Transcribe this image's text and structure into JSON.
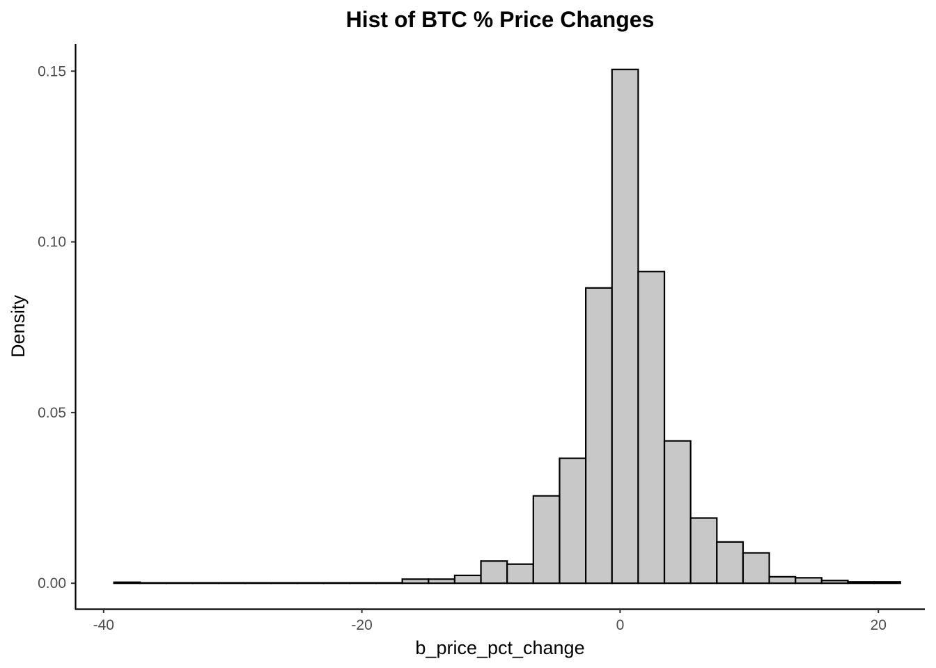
{
  "chart_data": {
    "type": "histogram",
    "title": "Hist of BTC % Price Changes",
    "xlabel": "b_price_pct_change",
    "ylabel": "Density",
    "xlim": [
      -42.2,
      23.6
    ],
    "ylim": [
      -0.0075,
      0.158
    ],
    "x_ticks": [
      -40,
      -20,
      0,
      20
    ],
    "x_tick_labels": [
      "-40",
      "-20",
      "0",
      "20"
    ],
    "y_ticks": [
      0,
      0.05,
      0.1,
      0.15
    ],
    "y_tick_labels": [
      "0.00",
      "0.05",
      "0.10",
      "0.15"
    ],
    "bar_fill": "#c8c8c8",
    "bar_stroke": "#000000",
    "grid": false,
    "bins": [
      {
        "x0": -39.2,
        "x1": -37.17,
        "density": 0.0003
      },
      {
        "x0": -37.17,
        "x1": -35.14,
        "density": 0
      },
      {
        "x0": -35.14,
        "x1": -33.11,
        "density": 0
      },
      {
        "x0": -33.11,
        "x1": -31.08,
        "density": 0
      },
      {
        "x0": -31.08,
        "x1": -29.05,
        "density": 0
      },
      {
        "x0": -29.05,
        "x1": -27.02,
        "density": 0
      },
      {
        "x0": -27.02,
        "x1": -24.99,
        "density": 0
      },
      {
        "x0": -24.99,
        "x1": -22.96,
        "density": 0
      },
      {
        "x0": -22.96,
        "x1": -20.93,
        "density": 0
      },
      {
        "x0": -20.93,
        "x1": -18.9,
        "density": 0
      },
      {
        "x0": -18.9,
        "x1": -16.87,
        "density": 0
      },
      {
        "x0": -16.87,
        "x1": -14.84,
        "density": 0.0012
      },
      {
        "x0": -14.84,
        "x1": -12.81,
        "density": 0.0012
      },
      {
        "x0": -12.81,
        "x1": -10.78,
        "density": 0.0023
      },
      {
        "x0": -10.78,
        "x1": -8.75,
        "density": 0.0065
      },
      {
        "x0": -8.75,
        "x1": -6.72,
        "density": 0.0056
      },
      {
        "x0": -6.72,
        "x1": -4.69,
        "density": 0.0256
      },
      {
        "x0": -4.69,
        "x1": -2.66,
        "density": 0.0366
      },
      {
        "x0": -2.66,
        "x1": -0.63,
        "density": 0.0865
      },
      {
        "x0": -0.63,
        "x1": 1.4,
        "density": 0.1505
      },
      {
        "x0": 1.4,
        "x1": 3.43,
        "density": 0.0913
      },
      {
        "x0": 3.43,
        "x1": 5.46,
        "density": 0.0417
      },
      {
        "x0": 5.46,
        "x1": 7.49,
        "density": 0.0191
      },
      {
        "x0": 7.49,
        "x1": 9.52,
        "density": 0.0121
      },
      {
        "x0": 9.52,
        "x1": 11.55,
        "density": 0.0089
      },
      {
        "x0": 11.55,
        "x1": 13.58,
        "density": 0.0019
      },
      {
        "x0": 13.58,
        "x1": 15.61,
        "density": 0.0016
      },
      {
        "x0": 15.61,
        "x1": 17.64,
        "density": 0.0008
      },
      {
        "x0": 17.64,
        "x1": 19.67,
        "density": 0.0004
      },
      {
        "x0": 19.67,
        "x1": 21.7,
        "density": 0.0004
      }
    ]
  }
}
